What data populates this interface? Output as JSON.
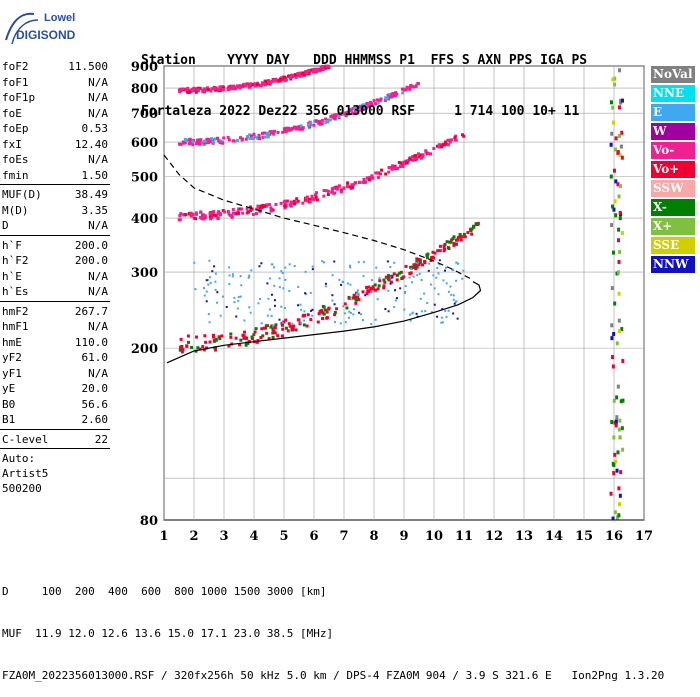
{
  "logo": {
    "line1": "Lowell",
    "line2": "DIGISONDE"
  },
  "header": {
    "labels": "Station    YYYY DAY   DDD HHMMSS P1  FFS S AXN PPS IGA PS",
    "values": "Fortaleza 2022 Dez22 356 013000 RSF     1 714 100 10+ 11"
  },
  "params": [
    {
      "group": [
        {
          "name": "foF2",
          "value": "11.500"
        },
        {
          "name": "foF1",
          "value": "N/A"
        },
        {
          "name": "foF1p",
          "value": "N/A"
        },
        {
          "name": "foE",
          "value": "N/A"
        },
        {
          "name": "foEp",
          "value": "0.53"
        },
        {
          "name": "fxI",
          "value": "12.40"
        },
        {
          "name": "foEs",
          "value": "N/A"
        },
        {
          "name": "fmin",
          "value": "1.50"
        }
      ]
    },
    {
      "group": [
        {
          "name": "MUF(D)",
          "value": "38.49"
        },
        {
          "name": "M(D)",
          "value": "3.35"
        },
        {
          "name": "D",
          "value": "N/A"
        }
      ]
    },
    {
      "group": [
        {
          "name": "h`F",
          "value": "200.0"
        },
        {
          "name": "h`F2",
          "value": "200.0"
        },
        {
          "name": "h`E",
          "value": "N/A"
        },
        {
          "name": "h`Es",
          "value": "N/A"
        }
      ]
    },
    {
      "group": [
        {
          "name": "hmF2",
          "value": "267.7"
        },
        {
          "name": "hmF1",
          "value": "N/A"
        },
        {
          "name": "hmE",
          "value": "110.0"
        },
        {
          "name": "yF2",
          "value": "61.0"
        },
        {
          "name": "yF1",
          "value": "N/A"
        },
        {
          "name": "yE",
          "value": "20.0"
        },
        {
          "name": "B0",
          "value": "56.6"
        },
        {
          "name": "B1",
          "value": "2.60"
        }
      ]
    },
    {
      "group": [
        {
          "name": "C-level",
          "value": "22"
        }
      ]
    }
  ],
  "auto": {
    "line1": "Auto:",
    "line2": "Artist5",
    "line3": "500200"
  },
  "legend": [
    {
      "label": "NoVal",
      "color": "#808080"
    },
    {
      "label": "NNE",
      "color": "#00e0f0"
    },
    {
      "label": "E",
      "color": "#40a8f0"
    },
    {
      "label": "W",
      "color": "#a000a0"
    },
    {
      "label": "Vo-",
      "color": "#f02090"
    },
    {
      "label": "Vo+",
      "color": "#f00030"
    },
    {
      "label": "SSW",
      "color": "#f8a8a8"
    },
    {
      "label": "X-",
      "color": "#008000"
    },
    {
      "label": "X+",
      "color": "#80c040"
    },
    {
      "label": "SSE",
      "color": "#d0d000"
    },
    {
      "label": "NNW",
      "color": "#1010c0"
    }
  ],
  "footer": {
    "line1": "D     100  200  400  600  800 1000 1500 3000 [km]",
    "line2": "MUF  11.9 12.0 12.6 13.6 15.0 17.1 23.0 38.5 [MHz]",
    "line3": "FZA0M_2022356013000.RSF / 320fx256h 50 kHz 5.0 km / DPS-4 FZA0M 904 / 3.9 S 321.6 E   Ion2Png 1.3.20"
  },
  "chart_data": {
    "type": "scatter",
    "xlim": [
      1,
      17
    ],
    "ylim": [
      80,
      900
    ],
    "y_scale": "log",
    "x_ticks": [
      1,
      2,
      3,
      4,
      5,
      6,
      7,
      8,
      9,
      10,
      11,
      12,
      13,
      14,
      15,
      16,
      17
    ],
    "y_ticks": [
      80,
      200,
      300,
      400,
      500,
      600,
      700,
      800,
      900
    ],
    "x_grid": [
      1,
      2,
      3,
      4,
      5,
      6,
      7,
      8,
      9,
      10,
      11,
      12,
      13,
      14,
      15,
      16,
      17
    ],
    "y_grid": [
      100,
      200,
      300,
      400,
      500,
      600,
      700,
      800,
      900
    ],
    "grid": true,
    "trace_bands": [
      {
        "name": "1 hop",
        "x_start": 1.5,
        "x_end": 11.5,
        "h0": 205,
        "h1": 385,
        "color": "#f00030",
        "alt_color": "#008000"
      },
      {
        "name": "2 hop",
        "x_start": 1.5,
        "x_end": 11.0,
        "h0": 405,
        "h1": 625,
        "color": "#f02090",
        "alt_color": "#f00030"
      },
      {
        "name": "3 hop",
        "x_start": 1.5,
        "x_end": 9.5,
        "h0": 600,
        "h1": 820,
        "color": "#f02090",
        "alt_color": "#40a8f0"
      },
      {
        "name": "4 hop",
        "x_start": 1.5,
        "x_end": 6.5,
        "h0": 790,
        "h1": 900,
        "color": "#f02090",
        "alt_color": "#f00030"
      }
    ],
    "echo_cloud": {
      "x_start": 2,
      "x_end": 11,
      "h0": 225,
      "h1": 320,
      "color": "#40a8f0"
    },
    "edge_echoes": {
      "x": 16.1,
      "h0": 80,
      "h1": 900,
      "color": "#008000"
    },
    "profile": {
      "solid": [
        [
          1.1,
          185
        ],
        [
          2,
          197
        ],
        [
          3,
          203
        ],
        [
          4,
          207
        ],
        [
          5,
          211
        ],
        [
          6,
          215
        ],
        [
          7,
          219
        ],
        [
          8,
          224
        ],
        [
          9,
          231
        ],
        [
          10,
          242
        ],
        [
          10.8,
          252
        ],
        [
          11.3,
          262
        ],
        [
          11.55,
          272
        ],
        [
          11.5,
          280
        ],
        [
          11.3,
          285
        ]
      ],
      "dashed": [
        [
          1.0,
          560
        ],
        [
          1.5,
          505
        ],
        [
          2,
          470
        ],
        [
          3,
          440
        ],
        [
          4,
          420
        ],
        [
          5,
          400
        ],
        [
          6,
          385
        ],
        [
          7,
          370
        ],
        [
          8,
          355
        ],
        [
          9,
          338
        ],
        [
          10,
          318
        ],
        [
          10.6,
          305
        ],
        [
          11.2,
          290
        ]
      ]
    }
  }
}
